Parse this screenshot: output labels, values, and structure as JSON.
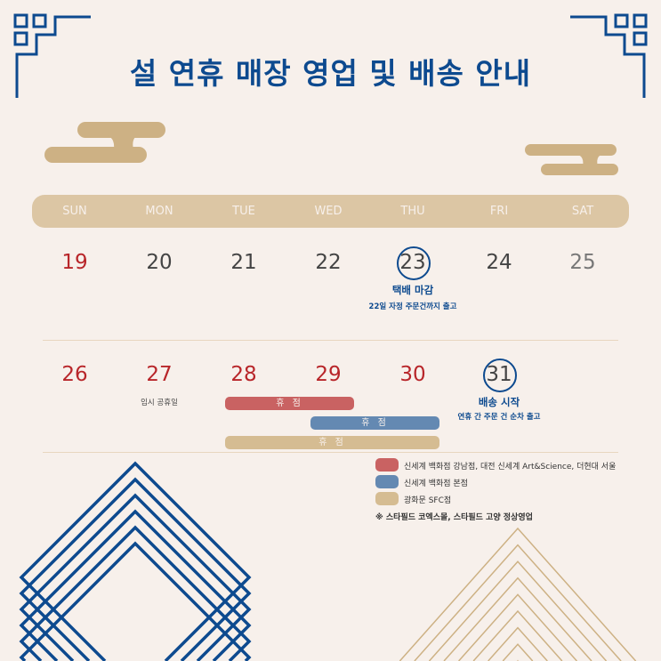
{
  "title": "설 연휴 매장 영업 및 배송 안내",
  "colors": {
    "blue": "#0d4a8f",
    "red": "#b8262a",
    "gold": "#cdb184",
    "bar_red": "#c96262",
    "bar_blue": "#6489b2",
    "bar_tan": "#d5bc92",
    "background": "#f7f0eb"
  },
  "weekdays": [
    "SUN",
    "MON",
    "TUE",
    "WED",
    "THU",
    "FRI",
    "SAT"
  ],
  "week1": [
    "19",
    "20",
    "21",
    "22",
    "23",
    "24",
    "25"
  ],
  "week2": [
    "26",
    "27",
    "28",
    "29",
    "30",
    "31"
  ],
  "notes": {
    "d23_title": "택배 마감",
    "d23_sub": "22일 자정 주문건까지 출고",
    "d27": "임시 공휴일",
    "d31_title": "배송 시작",
    "d31_sub": "연휴 간 주문 건 순차 출고"
  },
  "closure_bars": [
    {
      "label": "휴 점"
    },
    {
      "label": "휴 점"
    },
    {
      "label": "휴 점"
    }
  ],
  "legend": [
    {
      "label": "신세계 백화점 강남점, 대전 신세계 Art&Science, 더현대 서울"
    },
    {
      "label": "신세계 백화점 본점"
    },
    {
      "label": "광화문 SFC점"
    }
  ],
  "footnote": "※ 스타필드 코엑스몰, 스타필드 고양 정상영업"
}
